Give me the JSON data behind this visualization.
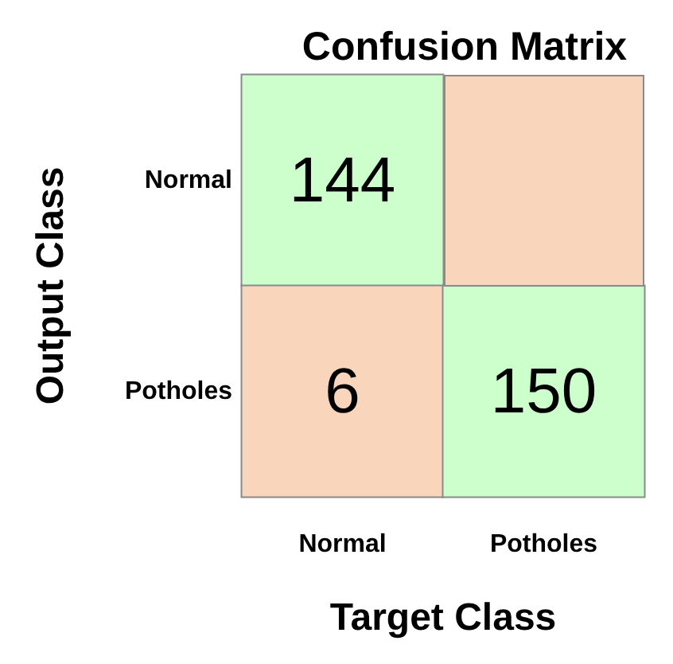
{
  "chart_data": {
    "type": "heatmap",
    "title": "Confusion Matrix",
    "xlabel": "Target Class",
    "ylabel": "Output Class",
    "categories": [
      "Normal",
      "Potholes"
    ],
    "y_categories": [
      "Normal",
      "Potholes"
    ],
    "cells": [
      [
        144,
        null
      ],
      [
        6,
        150
      ]
    ],
    "data_labels": true,
    "colors": [
      [
        "#ccffcc",
        "#f8d5bb"
      ],
      [
        "#f8d5bb",
        "#ccffcc"
      ]
    ]
  }
}
